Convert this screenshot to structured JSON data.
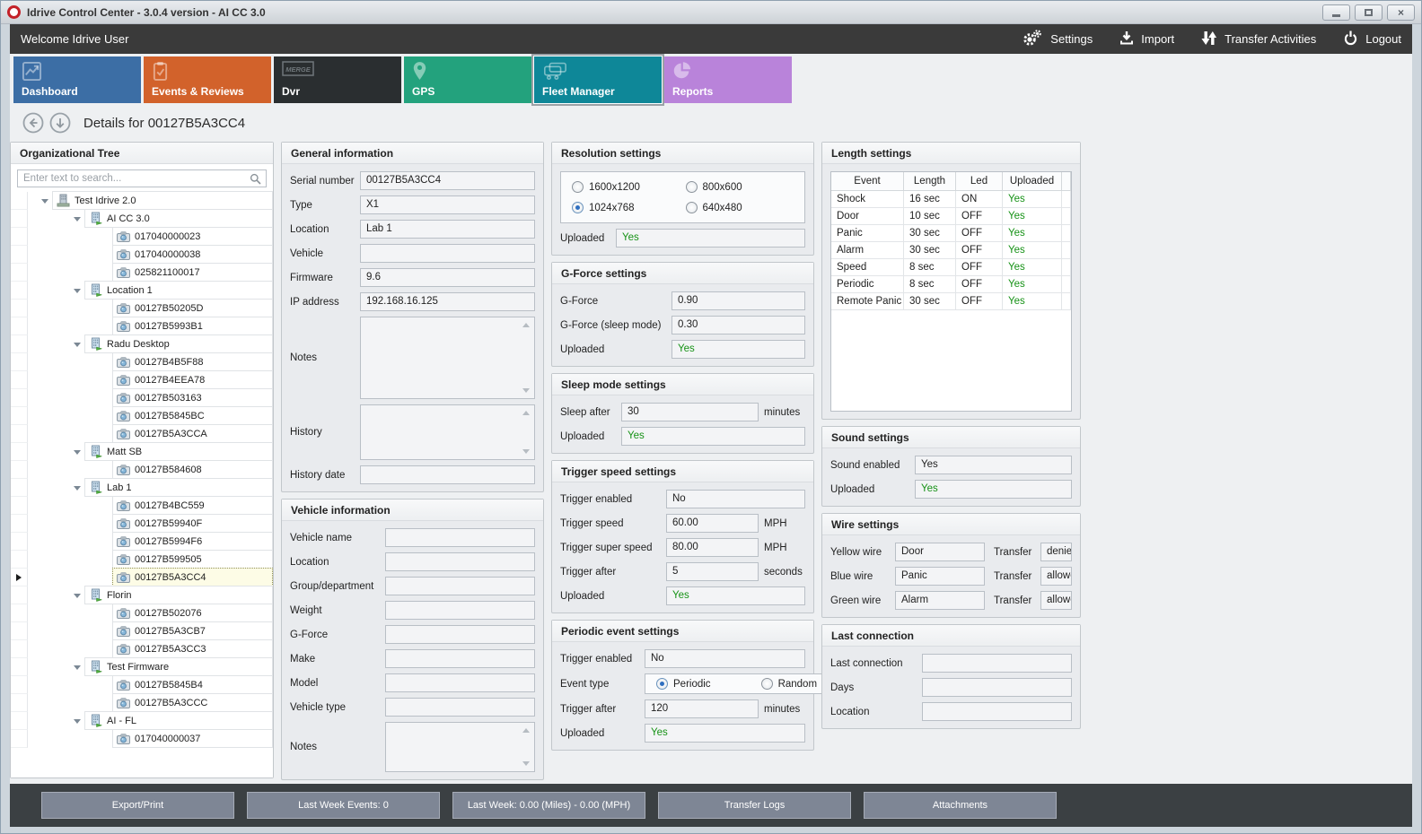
{
  "colors": {
    "status_green": "#169216",
    "navbar_bg": "#3a3a3a",
    "bottombar_bg": "#3b4043",
    "selected_row_bg": "#fdfce6"
  },
  "window": {
    "title": "Idrive Control Center - 3.0.4 version - AI CC 3.0",
    "controls": [
      "minimize",
      "maximize",
      "close"
    ]
  },
  "topbar": {
    "welcome": "Welcome Idrive User",
    "actions": [
      {
        "label": "Settings",
        "icon": "gears"
      },
      {
        "label": "Import",
        "icon": "download"
      },
      {
        "label": "Transfer Activities",
        "icon": "transfer-arrows"
      },
      {
        "label": "Logout",
        "icon": "power"
      }
    ]
  },
  "tabs": [
    {
      "label": "Dashboard",
      "color": "#3c6ea5",
      "icon": "chart",
      "selected": false
    },
    {
      "label": "Events & Reviews",
      "color": "#d2622b",
      "icon": "clipboard",
      "selected": false
    },
    {
      "label": "Dvr",
      "color": "#2a2e30",
      "icon": "merge",
      "icon_text": "MERGE",
      "selected": false
    },
    {
      "label": "GPS",
      "color": "#23a27d",
      "icon": "pin",
      "selected": false
    },
    {
      "label": "Fleet Manager",
      "color": "#0e8798",
      "icon": "trucks",
      "selected": true
    },
    {
      "label": "Reports",
      "color": "#b983da",
      "icon": "pie",
      "selected": false
    }
  ],
  "details_header": {
    "title": "Details for 00127B5A3CC4"
  },
  "org_tree": {
    "title": "Organizational Tree",
    "search_placeholder": "Enter text to search...",
    "nodes": [
      {
        "label": "Test Idrive 2.0",
        "level": 0,
        "type": "root",
        "expandable": true,
        "selected": false
      },
      {
        "label": "AI CC 3.0",
        "level": 1,
        "type": "group",
        "expandable": true,
        "selected": false
      },
      {
        "label": "017040000023",
        "level": 2,
        "type": "device",
        "expandable": false,
        "selected": false
      },
      {
        "label": "017040000038",
        "level": 2,
        "type": "device",
        "expandable": false,
        "selected": false
      },
      {
        "label": "025821100017",
        "level": 2,
        "type": "device",
        "expandable": false,
        "selected": false
      },
      {
        "label": "Location 1",
        "level": 1,
        "type": "group",
        "expandable": true,
        "selected": false
      },
      {
        "label": "00127B50205D",
        "level": 2,
        "type": "device",
        "expandable": false,
        "selected": false
      },
      {
        "label": "00127B5993B1",
        "level": 2,
        "type": "device",
        "expandable": false,
        "selected": false
      },
      {
        "label": "Radu Desktop",
        "level": 1,
        "type": "group",
        "expandable": true,
        "selected": false
      },
      {
        "label": "00127B4B5F88",
        "level": 2,
        "type": "device",
        "expandable": false,
        "selected": false
      },
      {
        "label": "00127B4EEA78",
        "level": 2,
        "type": "device",
        "expandable": false,
        "selected": false
      },
      {
        "label": "00127B503163",
        "level": 2,
        "type": "device",
        "expandable": false,
        "selected": false
      },
      {
        "label": "00127B5845BC",
        "level": 2,
        "type": "device",
        "expandable": false,
        "selected": false
      },
      {
        "label": "00127B5A3CCA",
        "level": 2,
        "type": "device",
        "expandable": false,
        "selected": false
      },
      {
        "label": "Matt SB",
        "level": 1,
        "type": "group",
        "expandable": true,
        "selected": false
      },
      {
        "label": "00127B584608",
        "level": 2,
        "type": "device",
        "expandable": false,
        "selected": false
      },
      {
        "label": "Lab 1",
        "level": 1,
        "type": "group",
        "expandable": true,
        "selected": false
      },
      {
        "label": "00127B4BC559",
        "level": 2,
        "type": "device",
        "expandable": false,
        "selected": false
      },
      {
        "label": "00127B59940F",
        "level": 2,
        "type": "device",
        "expandable": false,
        "selected": false
      },
      {
        "label": "00127B5994F6",
        "level": 2,
        "type": "device",
        "expandable": false,
        "selected": false
      },
      {
        "label": "00127B599505",
        "level": 2,
        "type": "device",
        "expandable": false,
        "selected": false
      },
      {
        "label": "00127B5A3CC4",
        "level": 2,
        "type": "device",
        "expandable": false,
        "selected": true
      },
      {
        "label": "Florin",
        "level": 1,
        "type": "group",
        "expandable": true,
        "selected": false
      },
      {
        "label": "00127B502076",
        "level": 2,
        "type": "device",
        "expandable": false,
        "selected": false
      },
      {
        "label": "00127B5A3CB7",
        "level": 2,
        "type": "device",
        "expandable": false,
        "selected": false
      },
      {
        "label": "00127B5A3CC3",
        "level": 2,
        "type": "device",
        "expandable": false,
        "selected": false
      },
      {
        "label": "Test Firmware",
        "level": 1,
        "type": "group",
        "expandable": true,
        "selected": false
      },
      {
        "label": "00127B5845B4",
        "level": 2,
        "type": "device",
        "expandable": false,
        "selected": false
      },
      {
        "label": "00127B5A3CCC",
        "level": 2,
        "type": "device",
        "expandable": false,
        "selected": false
      },
      {
        "label": "AI - FL",
        "level": 1,
        "type": "group",
        "expandable": true,
        "selected": false
      },
      {
        "label": "017040000037",
        "level": 2,
        "type": "device",
        "expandable": false,
        "selected": false
      }
    ]
  },
  "panels": {
    "general_info": {
      "title": "General information",
      "rows": [
        {
          "label": "Serial number",
          "kind": "input",
          "value": "00127B5A3CC4"
        },
        {
          "label": "Type",
          "kind": "input",
          "value": "X1"
        },
        {
          "label": "Location",
          "kind": "input",
          "value": "Lab 1"
        },
        {
          "label": "Vehicle",
          "kind": "input",
          "value": ""
        },
        {
          "label": "Firmware",
          "kind": "input",
          "value": "9.6"
        },
        {
          "label": "IP address",
          "kind": "input",
          "value": "192.168.16.125"
        },
        {
          "label": "Notes",
          "kind": "textarea",
          "value": "",
          "size": "lg"
        },
        {
          "label": "History",
          "kind": "textarea",
          "value": "",
          "size": "md"
        },
        {
          "label": "History date",
          "kind": "input",
          "value": ""
        }
      ]
    },
    "vehicle_info": {
      "title": "Vehicle information",
      "rows": [
        {
          "label": "Vehicle name",
          "kind": "input",
          "value": ""
        },
        {
          "label": "Location",
          "kind": "input",
          "value": ""
        },
        {
          "label": "Group/department",
          "kind": "input",
          "value": ""
        },
        {
          "label": "Weight",
          "kind": "input",
          "value": ""
        },
        {
          "label": "G-Force",
          "kind": "input",
          "value": ""
        },
        {
          "label": "Make",
          "kind": "input",
          "value": ""
        },
        {
          "label": "Model",
          "kind": "input",
          "value": ""
        },
        {
          "label": "Vehicle type",
          "kind": "input",
          "value": ""
        },
        {
          "label": "Notes",
          "kind": "textarea",
          "value": "",
          "size": "sm"
        }
      ]
    },
    "resolution": {
      "title": "Resolution settings",
      "rows": [
        {
          "kind": "radiobox",
          "options": [
            {
              "label": "1600x1200",
              "selected": false
            },
            {
              "label": "800x600",
              "selected": false
            },
            {
              "label": "1024x768",
              "selected": true
            },
            {
              "label": "640x480",
              "selected": false
            }
          ]
        },
        {
          "label": "Uploaded",
          "kind": "input",
          "value": "Yes",
          "green": true
        }
      ]
    },
    "gforce": {
      "title": "G-Force settings",
      "rows": [
        {
          "label": "G-Force",
          "kind": "input",
          "value": "0.90"
        },
        {
          "label": "G-Force (sleep mode)",
          "kind": "input",
          "value": "0.30"
        },
        {
          "label": "Uploaded",
          "kind": "input",
          "value": "Yes",
          "green": true
        }
      ]
    },
    "sleep": {
      "title": "Sleep mode settings",
      "rows": [
        {
          "label": "Sleep after",
          "kind": "input",
          "value": "30",
          "suffix": "minutes"
        },
        {
          "label": "Uploaded",
          "kind": "input",
          "value": "Yes",
          "green": true
        }
      ]
    },
    "trigger_speed": {
      "title": "Trigger speed settings",
      "rows": [
        {
          "label": "Trigger enabled",
          "kind": "input",
          "value": "No"
        },
        {
          "label": "Trigger speed",
          "kind": "input",
          "value": "60.00",
          "suffix": "MPH"
        },
        {
          "label": "Trigger super speed",
          "kind": "input",
          "value": "80.00",
          "suffix": "MPH"
        },
        {
          "label": "Trigger after",
          "kind": "input",
          "value": "5",
          "suffix": "seconds"
        },
        {
          "label": "Uploaded",
          "kind": "input",
          "value": "Yes",
          "green": true
        }
      ]
    },
    "periodic_event": {
      "title": "Periodic event settings",
      "rows": [
        {
          "label": "Trigger enabled",
          "kind": "input",
          "value": "No"
        },
        {
          "label": "Event type",
          "kind": "radios",
          "options": [
            {
              "label": "Periodic",
              "selected": true
            },
            {
              "label": "Random",
              "selected": false
            }
          ]
        },
        {
          "label": "Trigger after",
          "kind": "input",
          "value": "120",
          "suffix": "minutes"
        },
        {
          "label": "Uploaded",
          "kind": "input",
          "value": "Yes",
          "green": true
        }
      ]
    },
    "length_settings": {
      "title": "Length settings",
      "table": {
        "headers": [
          "Event",
          "Length",
          "Led",
          "Uploaded"
        ],
        "rows": [
          [
            "Shock",
            "16 sec",
            "ON",
            "Yes"
          ],
          [
            "Door",
            "10 sec",
            "OFF",
            "Yes"
          ],
          [
            "Panic",
            "30 sec",
            "OFF",
            "Yes"
          ],
          [
            "Alarm",
            "30 sec",
            "OFF",
            "Yes"
          ],
          [
            "Speed",
            "8 sec",
            "OFF",
            "Yes"
          ],
          [
            "Periodic",
            "8 sec",
            "OFF",
            "Yes"
          ],
          [
            "Remote Panic",
            "30 sec",
            "OFF",
            "Yes"
          ]
        ]
      }
    },
    "sound": {
      "title": "Sound settings",
      "rows": [
        {
          "label": "Sound enabled",
          "kind": "input",
          "value": "Yes"
        },
        {
          "label": "Uploaded",
          "kind": "input",
          "value": "Yes",
          "green": true
        }
      ]
    },
    "wire": {
      "title": "Wire settings",
      "rows": [
        {
          "label": "Yellow wire",
          "kind": "pair",
          "value": "Door",
          "label2": "Transfer",
          "value2": "denied"
        },
        {
          "label": "Blue wire",
          "kind": "pair",
          "value": "Panic",
          "label2": "Transfer",
          "value2": "allowed"
        },
        {
          "label": "Green wire",
          "kind": "pair",
          "value": "Alarm",
          "label2": "Transfer",
          "value2": "allowed"
        }
      ]
    },
    "last_connection": {
      "title": "Last connection",
      "rows": [
        {
          "label": "Last connection",
          "kind": "input",
          "value": ""
        },
        {
          "label": "Days",
          "kind": "input",
          "value": ""
        },
        {
          "label": "Location",
          "kind": "input",
          "value": ""
        }
      ]
    }
  },
  "bottom_bar": {
    "buttons": [
      "Export/Print",
      "Last Week Events: 0",
      "Last Week: 0.00 (Miles) - 0.00 (MPH)",
      "Transfer Logs",
      "Attachments"
    ]
  }
}
